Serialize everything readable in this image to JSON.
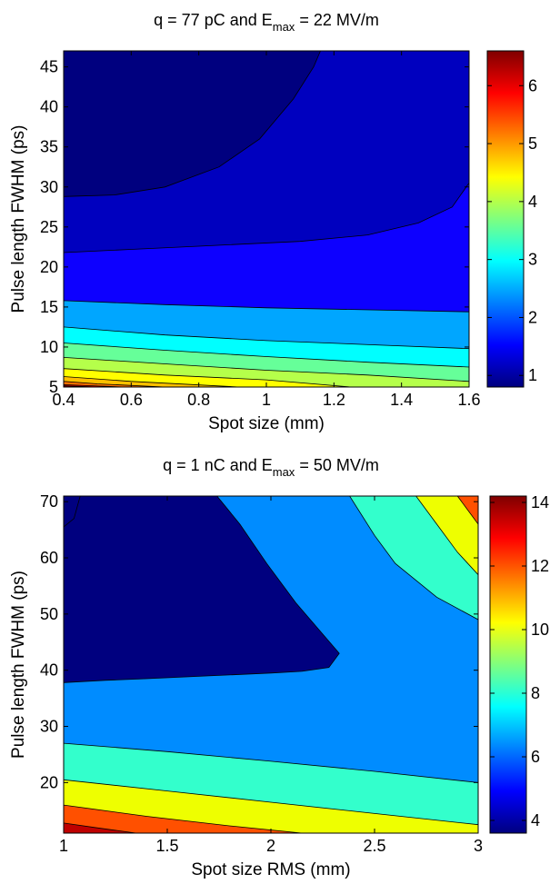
{
  "chart_data": [
    {
      "type": "contour",
      "title_prefix": "q = 77 pC and E",
      "title_sub": "max",
      "title_suffix": " = 22 MV/m",
      "xlabel": "Spot size (mm)",
      "ylabel": "Pulse length FWHM (ps)",
      "xlim": [
        0.4,
        1.6
      ],
      "ylim": [
        5,
        47
      ],
      "xticks": [
        0.4,
        0.6,
        0.8,
        1,
        1.2,
        1.4,
        1.6
      ],
      "xtick_labels": [
        "0.4",
        "0.6",
        "0.8",
        "1",
        "1.2",
        "1.4",
        "1.6"
      ],
      "yticks": [
        5,
        10,
        15,
        20,
        25,
        30,
        35,
        40,
        45
      ],
      "ytick_labels": [
        "5",
        "10",
        "15",
        "20",
        "25",
        "30",
        "35",
        "40",
        "45"
      ],
      "colorbar": {
        "min": 0.8,
        "max": 6.6,
        "ticks": [
          1,
          2,
          3,
          4,
          5,
          6
        ],
        "tick_labels": [
          "1",
          "2",
          "3",
          "4",
          "5",
          "6"
        ]
      },
      "regions": [
        {
          "color": "#0000bf",
          "polygon": [
            [
              0.4,
              5
            ],
            [
              1.6,
              5
            ],
            [
              1.6,
              47
            ],
            [
              0.4,
              47
            ]
          ]
        },
        {
          "color": "#0d00ff",
          "polygon": [
            [
              0.4,
              5
            ],
            [
              1.6,
              5
            ],
            [
              1.6,
              30.5
            ],
            [
              1.55,
              27.5
            ],
            [
              1.45,
              25.5
            ],
            [
              1.3,
              24
            ],
            [
              1.1,
              23.2
            ],
            [
              0.8,
              22.6
            ],
            [
              0.6,
              22.2
            ],
            [
              0.4,
              21.8
            ]
          ]
        },
        {
          "color": "#00a6ff",
          "polygon": [
            [
              0.4,
              5
            ],
            [
              1.6,
              5
            ],
            [
              1.6,
              14.4
            ],
            [
              1.0,
              14.9
            ],
            [
              0.7,
              15.3
            ],
            [
              0.4,
              15.8
            ]
          ]
        },
        {
          "color": "#00ffff",
          "polygon": [
            [
              0.4,
              5
            ],
            [
              1.6,
              5
            ],
            [
              1.6,
              9.8
            ],
            [
              1.0,
              10.8
            ],
            [
              0.7,
              11.5
            ],
            [
              0.4,
              12.5
            ]
          ]
        },
        {
          "color": "#66ff99",
          "polygon": [
            [
              0.4,
              5
            ],
            [
              1.6,
              5
            ],
            [
              1.6,
              7.5
            ],
            [
              1.3,
              8.1
            ],
            [
              1.0,
              8.8
            ],
            [
              0.7,
              9.6
            ],
            [
              0.4,
              10.5
            ]
          ]
        },
        {
          "color": "#b5ff4a",
          "polygon": [
            [
              0.4,
              5
            ],
            [
              1.6,
              5
            ],
            [
              1.6,
              5.7
            ],
            [
              1.3,
              6.5
            ],
            [
              1.0,
              7.1
            ],
            [
              0.7,
              7.9
            ],
            [
              0.4,
              8.7
            ]
          ]
        },
        {
          "color": "#ffff00",
          "polygon": [
            [
              0.4,
              5
            ],
            [
              1.25,
              5
            ],
            [
              1.0,
              5.9
            ],
            [
              0.7,
              6.5
            ],
            [
              0.4,
              7.3
            ]
          ]
        },
        {
          "color": "#ffc000",
          "polygon": [
            [
              0.4,
              5
            ],
            [
              0.92,
              5
            ],
            [
              0.6,
              5.7
            ],
            [
              0.4,
              6.3
            ]
          ]
        },
        {
          "color": "#ff7000",
          "polygon": [
            [
              0.4,
              5
            ],
            [
              0.7,
              5
            ],
            [
              0.5,
              5.4
            ],
            [
              0.4,
              5.7
            ]
          ]
        },
        {
          "color": "#ff0000",
          "polygon": [
            [
              0.4,
              5
            ],
            [
              0.58,
              5
            ],
            [
              0.4,
              5.3
            ]
          ]
        },
        {
          "color": "#cc0000",
          "polygon": [
            [
              0.4,
              5
            ],
            [
              0.5,
              5
            ],
            [
              0.4,
              5.15
            ]
          ]
        },
        {
          "color": "#00007f",
          "polygon": [
            [
              0.4,
              47
            ],
            [
              1.16,
              47
            ],
            [
              1.14,
              45
            ],
            [
              1.08,
              41
            ],
            [
              0.98,
              36
            ],
            [
              0.86,
              32.5
            ],
            [
              0.7,
              30
            ],
            [
              0.55,
              29
            ],
            [
              0.4,
              28.8
            ]
          ]
        }
      ]
    },
    {
      "type": "contour",
      "title_prefix": "q = 1 nC and E",
      "title_sub": "max",
      "title_suffix": " = 50 MV/m",
      "xlabel": "Spot size RMS (mm)",
      "ylabel": "Pulse length FWHM (ps)",
      "xlim": [
        1,
        3
      ],
      "ylim": [
        11,
        71
      ],
      "xticks": [
        1,
        1.5,
        2,
        2.5,
        3
      ],
      "xtick_labels": [
        "1",
        "1.5",
        "2",
        "2.5",
        "3"
      ],
      "yticks": [
        20,
        30,
        40,
        50,
        60,
        70
      ],
      "ytick_labels": [
        "20",
        "30",
        "40",
        "50",
        "60",
        "70"
      ],
      "colorbar": {
        "min": 3.6,
        "max": 14.2,
        "ticks": [
          4,
          6,
          8,
          10,
          12,
          14
        ],
        "tick_labels": [
          "4",
          "6",
          "8",
          "10",
          "12",
          "14"
        ]
      },
      "regions": [
        {
          "color": "#008cff",
          "polygon": [
            [
              1,
              11
            ],
            [
              3,
              11
            ],
            [
              3,
              71
            ],
            [
              1,
              71
            ]
          ]
        },
        {
          "color": "#00007f",
          "polygon": [
            [
              1,
              71
            ],
            [
              1.74,
              71
            ],
            [
              1.85,
              66
            ],
            [
              1.98,
              59
            ],
            [
              2.12,
              52
            ],
            [
              2.26,
              46
            ],
            [
              2.33,
              43
            ],
            [
              2.28,
              40.5
            ],
            [
              2.15,
              39.8
            ],
            [
              2.0,
              39.5
            ],
            [
              1.7,
              39
            ],
            [
              1.4,
              38.5
            ],
            [
              1.2,
              38.2
            ],
            [
              1,
              37.8
            ]
          ]
        },
        {
          "color": "#000080",
          "polygon": [
            [
              1,
              71
            ],
            [
              1.08,
              71
            ],
            [
              1.05,
              67
            ],
            [
              1,
              65.5
            ]
          ]
        },
        {
          "color": "#33ffcc",
          "polygon": [
            [
              2.38,
              71
            ],
            [
              3,
              71
            ],
            [
              3,
              49
            ],
            [
              2.8,
              53
            ],
            [
              2.6,
              59
            ],
            [
              2.5,
              64
            ]
          ]
        },
        {
          "color": "#eeff00",
          "polygon": [
            [
              2.7,
              71
            ],
            [
              3,
              71
            ],
            [
              3,
              57
            ],
            [
              2.9,
              61
            ],
            [
              2.8,
              66
            ]
          ]
        },
        {
          "color": "#ff5000",
          "polygon": [
            [
              2.9,
              71
            ],
            [
              3,
              71
            ],
            [
              3,
              66
            ]
          ]
        },
        {
          "color": "#33ffcc",
          "polygon": [
            [
              1,
              11
            ],
            [
              3,
              11
            ],
            [
              3,
              20
            ],
            [
              2.5,
              22
            ],
            [
              2.0,
              23.8
            ],
            [
              1.5,
              25.5
            ],
            [
              1,
              27
            ]
          ]
        },
        {
          "color": "#eeff00",
          "polygon": [
            [
              1,
              11
            ],
            [
              3,
              11
            ],
            [
              3,
              12.5
            ],
            [
              2.5,
              14.5
            ],
            [
              2.0,
              16.5
            ],
            [
              1.5,
              18.5
            ],
            [
              1,
              20.5
            ]
          ]
        },
        {
          "color": "#ff5000",
          "polygon": [
            [
              1,
              11
            ],
            [
              2.15,
              11
            ],
            [
              1.8,
              12.3
            ],
            [
              1.4,
              14
            ],
            [
              1,
              16
            ]
          ]
        },
        {
          "color": "#bf0000",
          "polygon": [
            [
              1,
              11
            ],
            [
              1.35,
              11
            ],
            [
              1.15,
              12
            ],
            [
              1,
              12.8
            ]
          ]
        }
      ]
    }
  ]
}
